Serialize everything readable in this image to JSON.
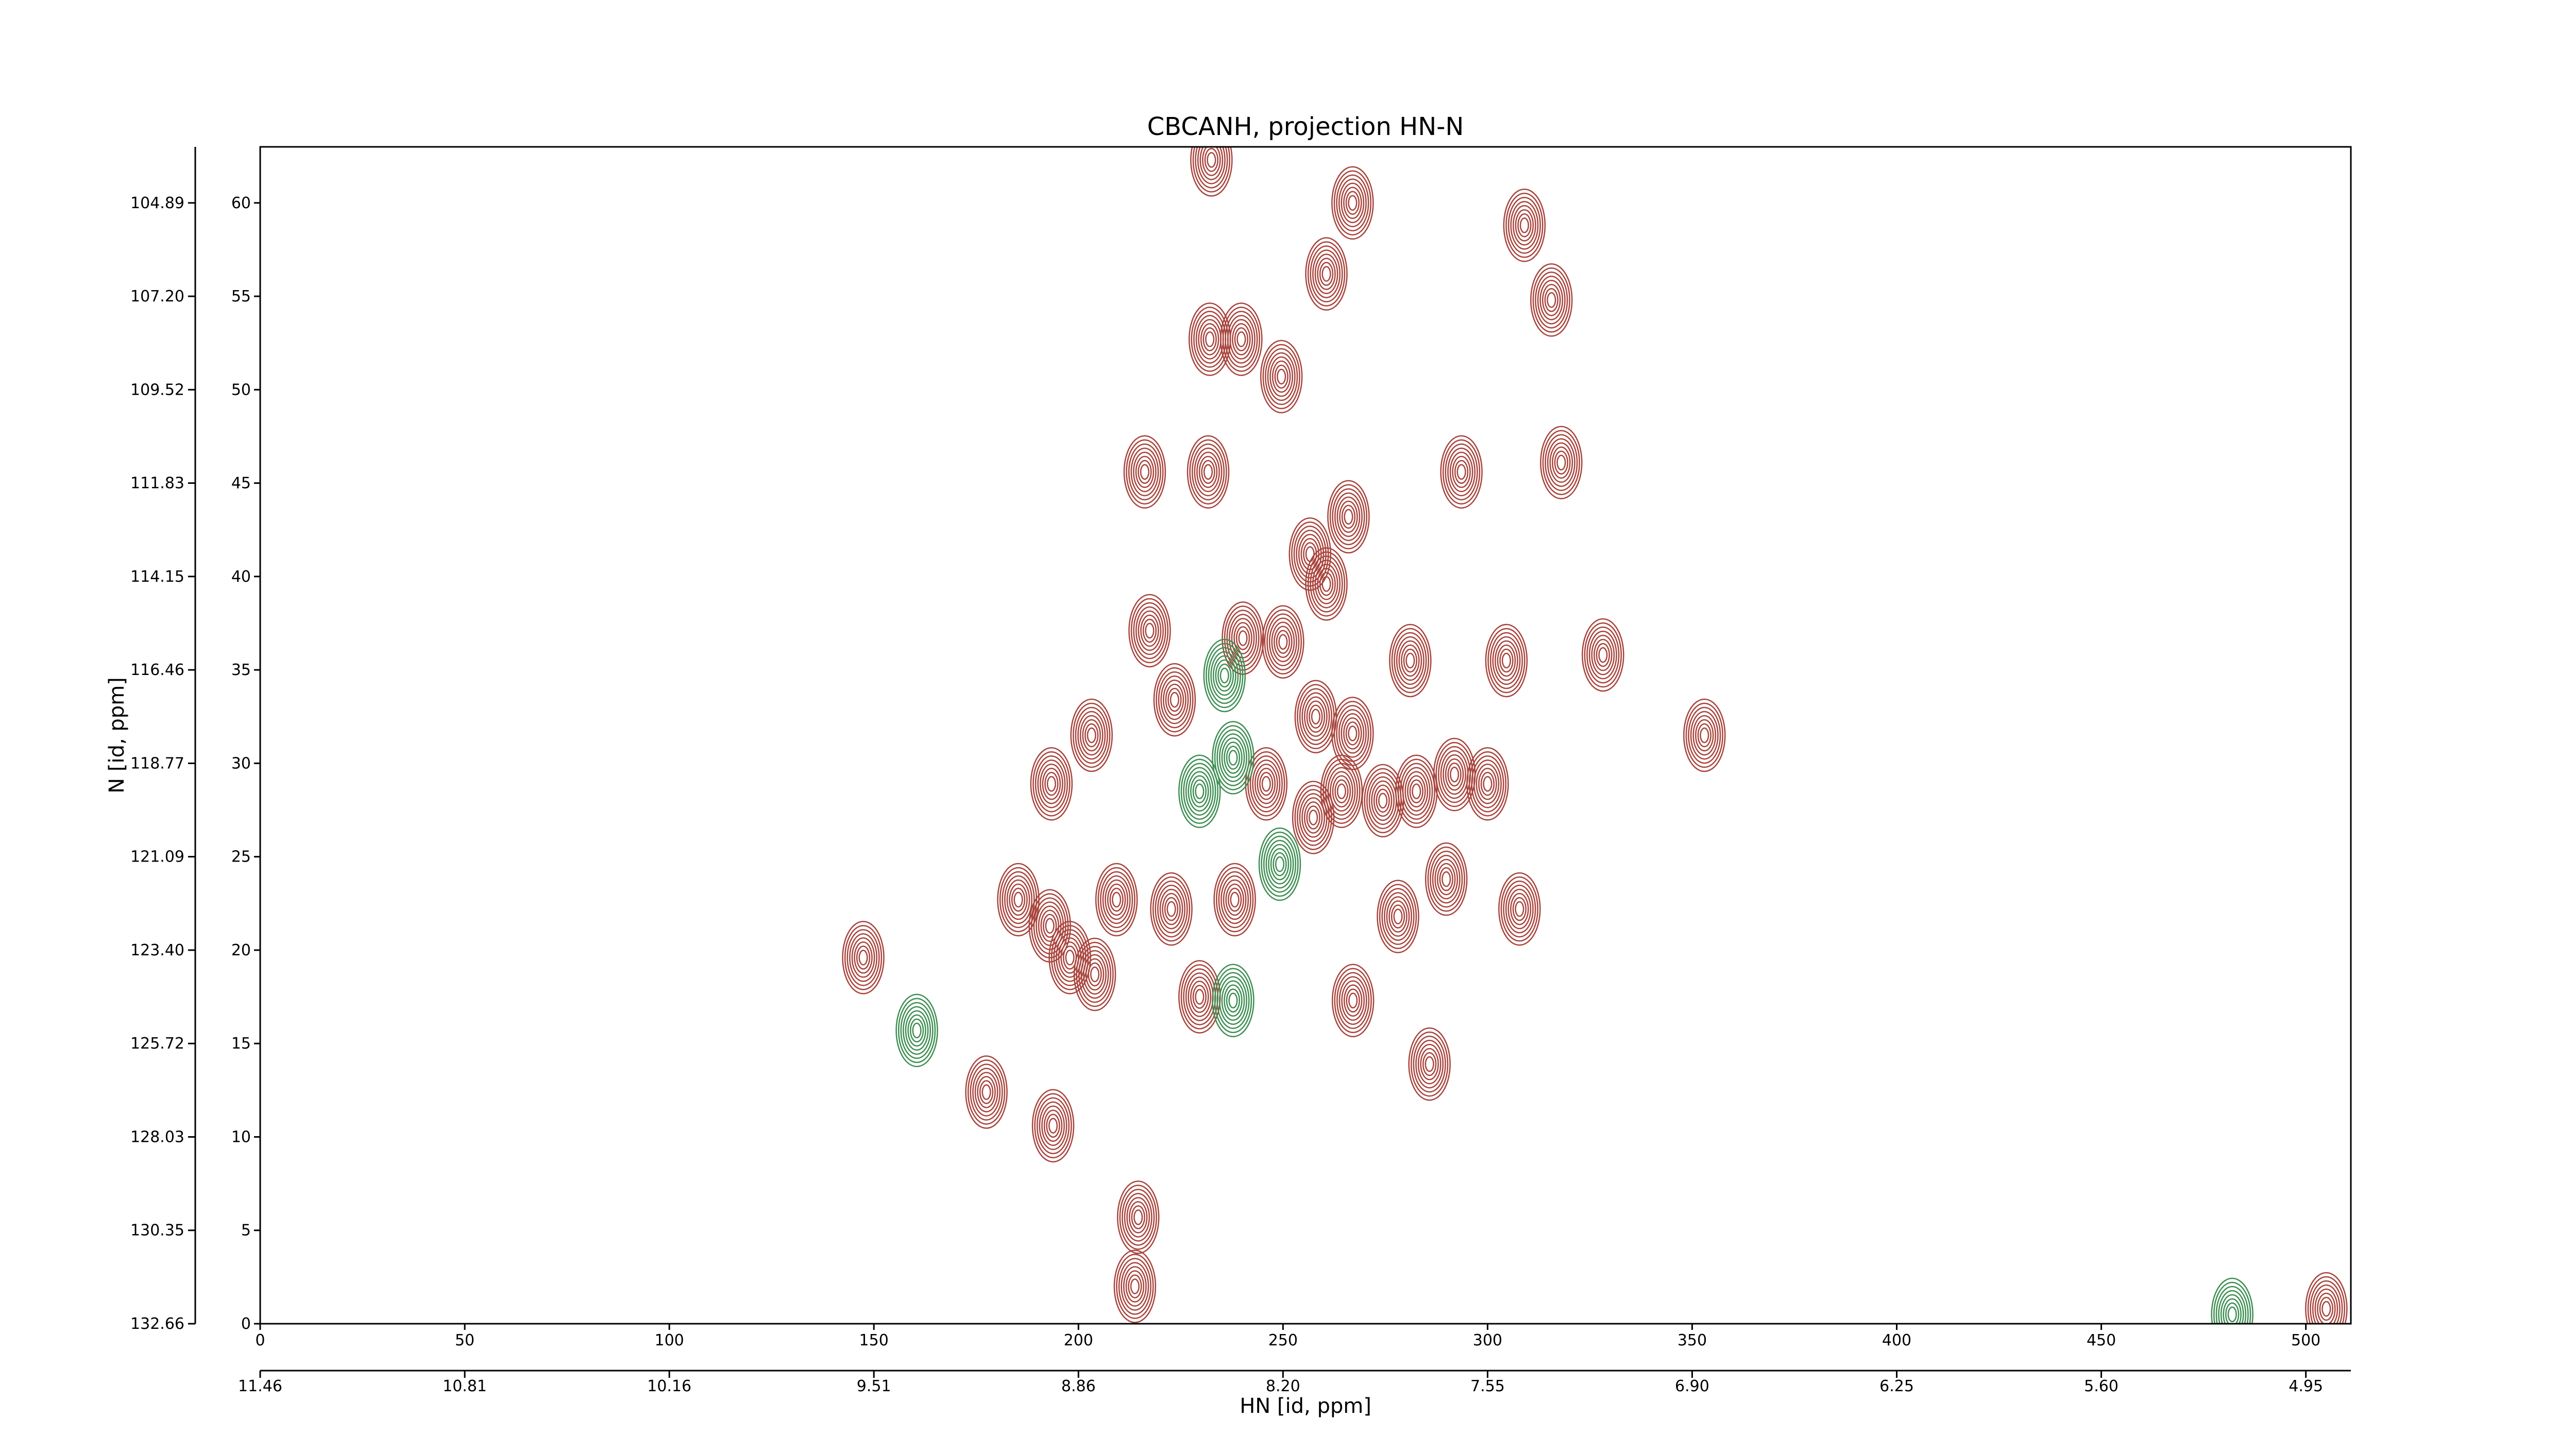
{
  "chart_data": {
    "type": "contour",
    "title": "CBCANH, projection HN-N",
    "xlabel": "HN [id, ppm]",
    "ylabel": "N [id, ppm]",
    "xlim": [
      0,
      511
    ],
    "ylim": [
      0,
      63
    ],
    "xticks": [
      0,
      50,
      100,
      150,
      200,
      250,
      300,
      350,
      400,
      450,
      500
    ],
    "yticks": [
      0,
      5,
      10,
      15,
      20,
      25,
      30,
      35,
      40,
      45,
      50,
      55,
      60
    ],
    "x2ticks": [
      {
        "value": 0,
        "label": "11.46"
      },
      {
        "value": 50,
        "label": "10.81"
      },
      {
        "value": 100,
        "label": "10.16"
      },
      {
        "value": 150,
        "label": "9.51"
      },
      {
        "value": 200,
        "label": "8.86"
      },
      {
        "value": 250,
        "label": "8.20"
      },
      {
        "value": 300,
        "label": "7.55"
      },
      {
        "value": 350,
        "label": "6.90"
      },
      {
        "value": 400,
        "label": "6.25"
      },
      {
        "value": 450,
        "label": "5.60"
      },
      {
        "value": 500,
        "label": "4.95"
      }
    ],
    "y2ticks": [
      {
        "value": 0,
        "label": "132.66"
      },
      {
        "value": 5,
        "label": "130.35"
      },
      {
        "value": 10,
        "label": "128.03"
      },
      {
        "value": 15,
        "label": "125.72"
      },
      {
        "value": 20,
        "label": "123.40"
      },
      {
        "value": 25,
        "label": "121.09"
      },
      {
        "value": 30,
        "label": "118.77"
      },
      {
        "value": 35,
        "label": "116.46"
      },
      {
        "value": 40,
        "label": "114.15"
      },
      {
        "value": 45,
        "label": "111.83"
      },
      {
        "value": 50,
        "label": "109.52"
      },
      {
        "value": 55,
        "label": "107.20"
      },
      {
        "value": 60,
        "label": "104.89"
      }
    ],
    "series": [
      {
        "color": "#a8443c",
        "x": [
          267,
          309,
          260.6,
          315.6,
          232.1,
          239.8,
          249.6,
          216.2,
          231.7,
          318,
          293.6,
          266,
          256.6,
          260.6,
          217.4,
          240.2,
          250,
          281.1,
          304.6,
          328.2,
          353,
          203.2,
          193.4,
          223.5,
          258,
          267,
          245.9,
          257.4,
          264.3,
          274.4,
          282.6,
          291.9,
          300,
          289.9,
          307.8,
          185.3,
          193,
          209.3,
          222.7,
          238.2,
          278.1,
          197.9,
          204,
          147.4,
          229.6,
          267.1,
          285.8,
          177.5,
          193.8,
          214.6,
          213.8,
          232.5,
          505
        ],
        "y": [
          60,
          58.8,
          56.2,
          54.8,
          52.7,
          52.7,
          50.7,
          45.6,
          45.6,
          46.1,
          45.6,
          43.2,
          41.2,
          39.6,
          37.1,
          36.7,
          36.5,
          35.5,
          35.5,
          35.8,
          31.5,
          31.5,
          28.9,
          33.4,
          32.5,
          31.6,
          28.9,
          27.1,
          28.5,
          28,
          28.5,
          29.4,
          28.9,
          23.8,
          22.2,
          22.7,
          21.3,
          22.7,
          22.2,
          22.7,
          21.8,
          19.6,
          18.7,
          19.6,
          17.5,
          17.3,
          13.9,
          12.4,
          10.6,
          5.7,
          2,
          62.3,
          0.8
        ]
      },
      {
        "color": "#3e8e52",
        "x": [
          235.7,
          237.8,
          229.6,
          249.2,
          237.8,
          160.5,
          482
        ],
        "y": [
          34.7,
          30.3,
          28.5,
          24.6,
          17.3,
          15.7,
          0.5
        ]
      }
    ]
  }
}
